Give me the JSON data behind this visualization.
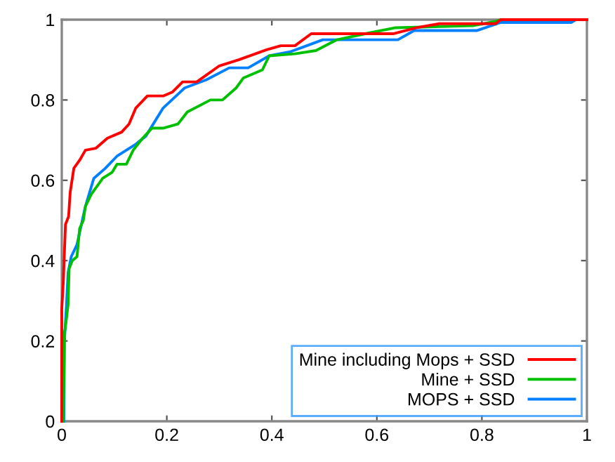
{
  "chart_data": {
    "type": "line",
    "xlim": [
      0,
      1
    ],
    "ylim": [
      0,
      1
    ],
    "xticks": [
      0,
      0.2,
      0.4,
      0.6,
      0.8,
      1
    ],
    "yticks": [
      0,
      0.2,
      0.4,
      0.6,
      0.8,
      1
    ],
    "grid": false,
    "legend": "bottom right",
    "marker": "none",
    "line_style": "solid",
    "series": [
      {
        "name": "Mine including Mops + SSD",
        "color": "#ff0000",
        "x": [
          0,
          0,
          0.003,
          0.005,
          0.007,
          0.013,
          0.016,
          0.023,
          0.034,
          0.045,
          0.065,
          0.087,
          0.114,
          0.128,
          0.141,
          0.163,
          0.193,
          0.211,
          0.23,
          0.257,
          0.3,
          0.337,
          0.39,
          0.417,
          0.444,
          0.475,
          0.631,
          0.676,
          0.719,
          0.826,
          0.836,
          0.97,
          1
        ],
        "values": [
          0,
          0.28,
          0.35,
          0.42,
          0.49,
          0.51,
          0.57,
          0.63,
          0.65,
          0.675,
          0.68,
          0.705,
          0.72,
          0.74,
          0.78,
          0.81,
          0.81,
          0.82,
          0.845,
          0.845,
          0.885,
          0.9,
          0.925,
          0.935,
          0.935,
          0.965,
          0.965,
          0.98,
          0.99,
          0.99,
          1,
          1,
          1
        ]
      },
      {
        "name": "Mine + SSD",
        "color": "#00c000",
        "x": [
          0.003,
          0.005,
          0.007,
          0.012,
          0.014,
          0.02,
          0.029,
          0.034,
          0.041,
          0.045,
          0.056,
          0.078,
          0.096,
          0.105,
          0.123,
          0.136,
          0.154,
          0.172,
          0.194,
          0.221,
          0.239,
          0.283,
          0.306,
          0.332,
          0.346,
          0.382,
          0.395,
          0.444,
          0.484,
          0.524,
          0.578,
          0.636,
          0.783,
          0.826,
          0.836,
          1
        ],
        "values": [
          0,
          0.22,
          0.235,
          0.29,
          0.38,
          0.4,
          0.41,
          0.48,
          0.5,
          0.535,
          0.565,
          0.605,
          0.62,
          0.64,
          0.64,
          0.675,
          0.705,
          0.73,
          0.73,
          0.74,
          0.77,
          0.8,
          0.8,
          0.83,
          0.855,
          0.875,
          0.91,
          0.915,
          0.923,
          0.95,
          0.965,
          0.98,
          0.985,
          0.996,
          1,
          1
        ]
      },
      {
        "name": "MOPS + SSD",
        "color": "#0080ff",
        "x": [
          0.004,
          0.005,
          0.009,
          0.012,
          0.018,
          0.029,
          0.034,
          0.045,
          0.061,
          0.083,
          0.105,
          0.141,
          0.16,
          0.193,
          0.234,
          0.275,
          0.319,
          0.355,
          0.395,
          0.435,
          0.462,
          0.497,
          0.64,
          0.671,
          0.791,
          0.836,
          0.97,
          0.979,
          1
        ],
        "values": [
          0,
          0.2,
          0.29,
          0.37,
          0.41,
          0.44,
          0.47,
          0.535,
          0.605,
          0.63,
          0.66,
          0.69,
          0.71,
          0.78,
          0.83,
          0.85,
          0.88,
          0.88,
          0.91,
          0.92,
          0.933,
          0.95,
          0.95,
          0.973,
          0.973,
          0.993,
          0.993,
          1,
          1
        ]
      }
    ]
  }
}
